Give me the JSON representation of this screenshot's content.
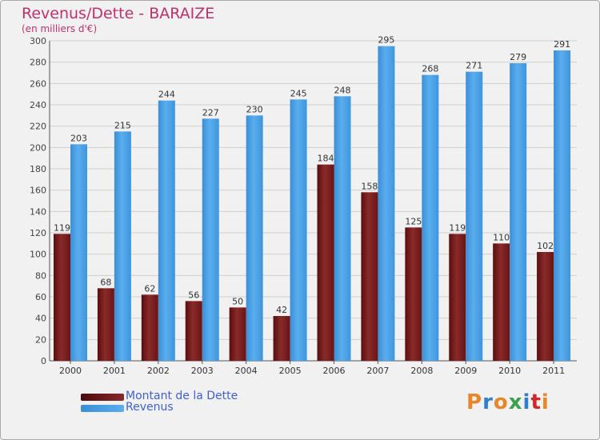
{
  "chart_data": {
    "type": "bar",
    "title": "Revenus/Dette - BARAIZE",
    "subtitle": "(en milliers d'€)",
    "categories": [
      "2000",
      "2001",
      "2002",
      "2003",
      "2004",
      "2005",
      "2006",
      "2007",
      "2008",
      "2009",
      "2010",
      "2011"
    ],
    "series": [
      {
        "name": "Montant de la Dette",
        "values": [
          119,
          68,
          62,
          56,
          50,
          42,
          184,
          158,
          125,
          119,
          110,
          102
        ],
        "color": "#7a1a1a"
      },
      {
        "name": "Revenus",
        "values": [
          203,
          215,
          244,
          227,
          230,
          245,
          248,
          295,
          268,
          271,
          279,
          291
        ],
        "color": "#4a9fe0"
      }
    ],
    "ylim": [
      0,
      300
    ],
    "yticks": [
      0,
      20,
      40,
      60,
      80,
      100,
      120,
      140,
      160,
      180,
      200,
      220,
      240,
      260,
      280,
      300
    ],
    "grid": true,
    "legend_position": "bottom-left"
  },
  "logo": {
    "text": "Proxiti",
    "colors": [
      "#e8862a",
      "#2f7fd0",
      "#e8862a",
      "#3aa04a",
      "#2f7fd0",
      "#d6262a",
      "#e8862a"
    ]
  }
}
